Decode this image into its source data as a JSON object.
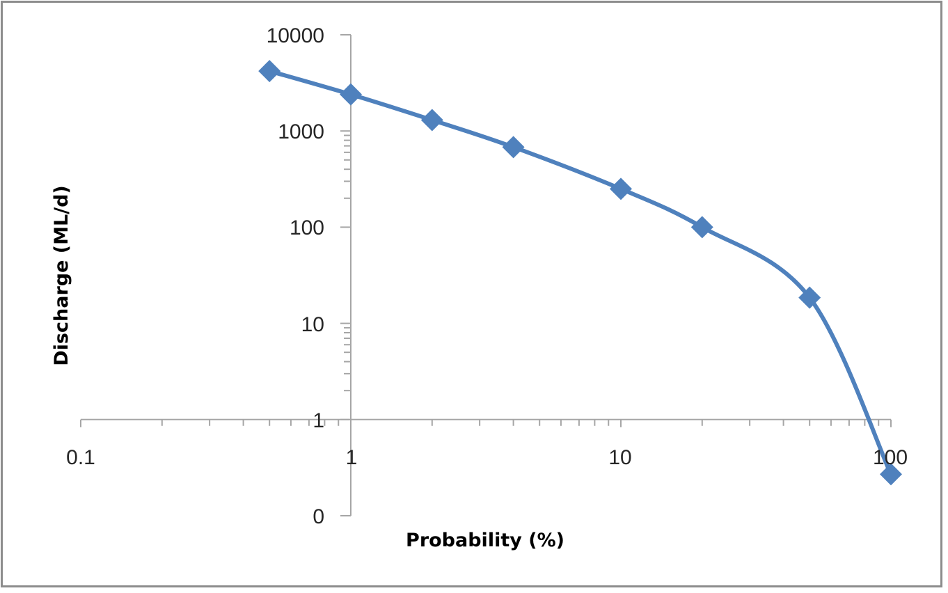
{
  "chart_data": {
    "type": "line",
    "title": "",
    "xlabel": "Probability (%)",
    "ylabel": "Discharge (ML/d)",
    "x_scale": "log",
    "y_scale": "log",
    "xlim": [
      0.1,
      100
    ],
    "ylim": [
      0.1,
      10000
    ],
    "x_ticks": [
      "0.1",
      "1",
      "10",
      "100"
    ],
    "y_ticks": [
      "10000",
      "1000",
      "100",
      "10",
      "1",
      "0"
    ],
    "grid": false,
    "legend": null,
    "series": [
      {
        "name": "Discharge",
        "color": "#4f81bd",
        "marker": "diamond",
        "smooth": true,
        "x": [
          0.5,
          1,
          2,
          4,
          10,
          20,
          50,
          100
        ],
        "values": [
          4200,
          2400,
          1300,
          680,
          250,
          100,
          18.5,
          0.27
        ]
      }
    ]
  },
  "axes": {
    "x_title": "Probability (%)",
    "y_title": "Discharge (ML/d)",
    "x_tick_labels": [
      "0.1",
      "1",
      "10",
      "100"
    ],
    "y_tick_labels": [
      "10000",
      "1000",
      "100",
      "10",
      "1",
      "0"
    ]
  },
  "colors": {
    "series": "#4f81bd",
    "axis": "#a6a6a6",
    "frame": "#8c8c8c",
    "text": "#262626"
  }
}
